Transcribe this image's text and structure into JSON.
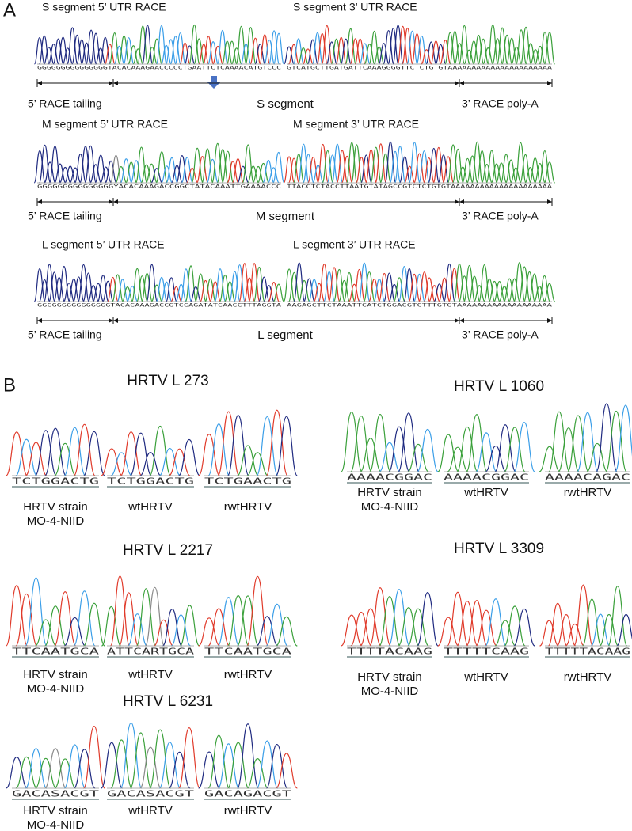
{
  "panel_a": {
    "label": "A",
    "rows": [
      {
        "left_title": "S segment 5’ UTR RACE",
        "right_title": "S segment 3’ UTR RACE",
        "left_seq": "GGGGGGGGGGGGGGGTACACAAAGAACCCCCTGAATTCTCAAAACATGTCCC",
        "right_seq": "GTCATGCTTGATGATTCAAAGGGGTTCTCTGTGTAAAAAAAAAAAAAAAAAAAAAA",
        "tailing": "5’ RACE tailing",
        "segment": "S segment",
        "poly_a": "3’ RACE poly-A"
      },
      {
        "left_title": "M segment 5’ UTR RACE",
        "right_title": "M segment 3’ UTR RACE",
        "left_seq": "GGGGGGGGGGGGGGGYACACAAAGACCGGCTATACAAATTGAAAACCC",
        "right_seq": "TTACCTCTACCTTAATGTATAGCCGTCTCTGTGTAAAAAAAAAAAAAAAAAAAAA",
        "tailing": "5’ RACE tailing",
        "segment": "M segment",
        "poly_a": "3’ RACE poly-A"
      },
      {
        "left_title": "L segment 5’ UTR RACE",
        "right_title": "L segment 3’ UTR RACE",
        "left_seq": "GGGGGGGGGGGGGGGTACACAAAGACCGTCCAGATATCAACCTTTAGGTA",
        "right_seq": "AAGAGCTTCTAAATTCATCTGGACGTCTTTGTGTAAAAAAAAAAAAAAAAAAA",
        "tailing": "5’ RACE tailing",
        "segment": "L segment",
        "poly_a": "3’ RACE poly-A"
      }
    ]
  },
  "panel_b": {
    "label": "B",
    "groups": [
      {
        "title": "HRTV L 273",
        "traces": [
          {
            "seq": "TCTGGACTG",
            "label": [
              "HRTV strain",
              "MO-4-NIID"
            ]
          },
          {
            "seq": "TCTGGACTG",
            "label": [
              "wtHRTV"
            ]
          },
          {
            "seq": "TCTGAACTG",
            "label": [
              "rwtHRTV"
            ]
          }
        ]
      },
      {
        "title": "HRTV L 2217",
        "traces": [
          {
            "seq": "TTCAATGCA",
            "label": [
              "HRTV strain",
              "MO-4-NIID"
            ]
          },
          {
            "seq": "ATTCARTGCA",
            "label": [
              "wtHRTV"
            ]
          },
          {
            "seq": "TTCAATGCA",
            "label": [
              "rwtHRTV"
            ]
          }
        ]
      },
      {
        "title": "HRTV L 6231",
        "traces": [
          {
            "seq": "GACASACGT",
            "label": [
              "HRTV strain",
              "MO-4-NIID"
            ]
          },
          {
            "seq": "GACASACGT",
            "label": [
              "wtHRTV"
            ]
          },
          {
            "seq": "GACAGACGT",
            "label": [
              "rwtHRTV"
            ]
          }
        ]
      },
      {
        "title": "HRTV L 1060",
        "traces": [
          {
            "seq": "AAAACGGAC",
            "label": [
              "HRTV strain",
              "MO-4-NIID"
            ]
          },
          {
            "seq": "AAAACGGAC",
            "label": [
              "wtHRTV"
            ]
          },
          {
            "seq": "AAAACAGAC",
            "label": [
              "rwtHRTV"
            ]
          }
        ]
      },
      {
        "title": "HRTV L 3309",
        "traces": [
          {
            "seq": "TTTTACAAG",
            "label": [
              "HRTV strain",
              "MO-4-NIID"
            ]
          },
          {
            "seq": "TTTTTCAAG",
            "label": [
              "wtHRTV"
            ]
          },
          {
            "seq": "TTTTTACAAG",
            "label": [
              "rwtHRTV"
            ]
          }
        ]
      }
    ]
  }
}
